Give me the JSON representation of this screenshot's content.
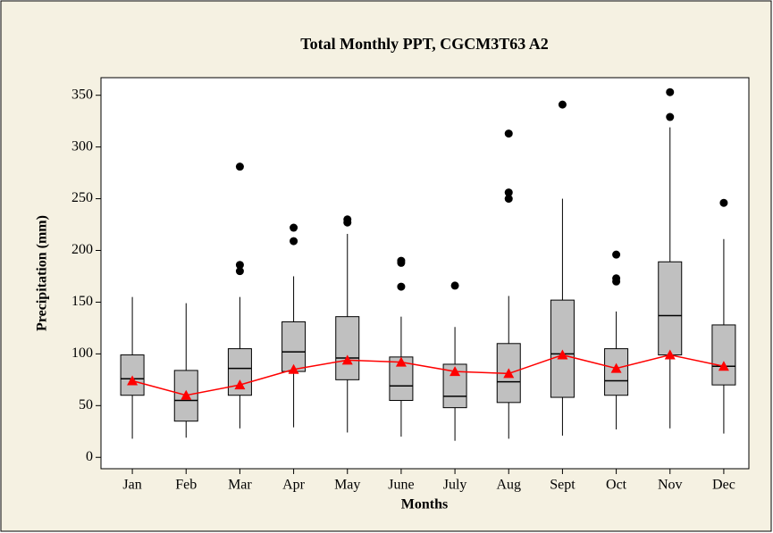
{
  "chart_data": {
    "type": "box",
    "title": "Total Monthly PPT, CGCM3T63 A2",
    "x_label": "Months",
    "y_label": "Precipitation (mm)",
    "categories": [
      "Jan",
      "Feb",
      "Mar",
      "Apr",
      "May",
      "June",
      "July",
      "Aug",
      "Sept",
      "Oct",
      "Nov",
      "Dec"
    ],
    "min": [
      18,
      19,
      28,
      29,
      24,
      20,
      16,
      18,
      21,
      27,
      28,
      23
    ],
    "q1": [
      60,
      35,
      60,
      83,
      75,
      55,
      48,
      53,
      58,
      60,
      99,
      70
    ],
    "median": [
      76,
      55,
      86,
      102,
      96,
      69,
      59,
      73,
      100,
      74,
      137,
      88
    ],
    "q3": [
      99,
      84,
      105,
      131,
      136,
      97,
      90,
      110,
      152,
      105,
      189,
      128
    ],
    "max": [
      155,
      149,
      155,
      175,
      216,
      136,
      126,
      156,
      250,
      141,
      319,
      211
    ],
    "outliers": [
      [],
      [],
      [
        281,
        186,
        180
      ],
      [
        222,
        209
      ],
      [
        230,
        227
      ],
      [
        190,
        188,
        165
      ],
      [
        166
      ],
      [
        313,
        256,
        250
      ],
      [
        341
      ],
      [
        196,
        173,
        170
      ],
      [
        353,
        329
      ],
      [
        246
      ]
    ],
    "means": [
      74,
      60,
      70,
      85,
      94,
      92,
      83,
      81,
      99,
      86,
      99,
      88
    ],
    "box_color": "#c0c0c0",
    "mean_color": "#ff0000",
    "ylim": [
      -11,
      367
    ],
    "yticks": [
      0,
      50,
      100,
      150,
      200,
      250,
      300,
      350
    ]
  }
}
